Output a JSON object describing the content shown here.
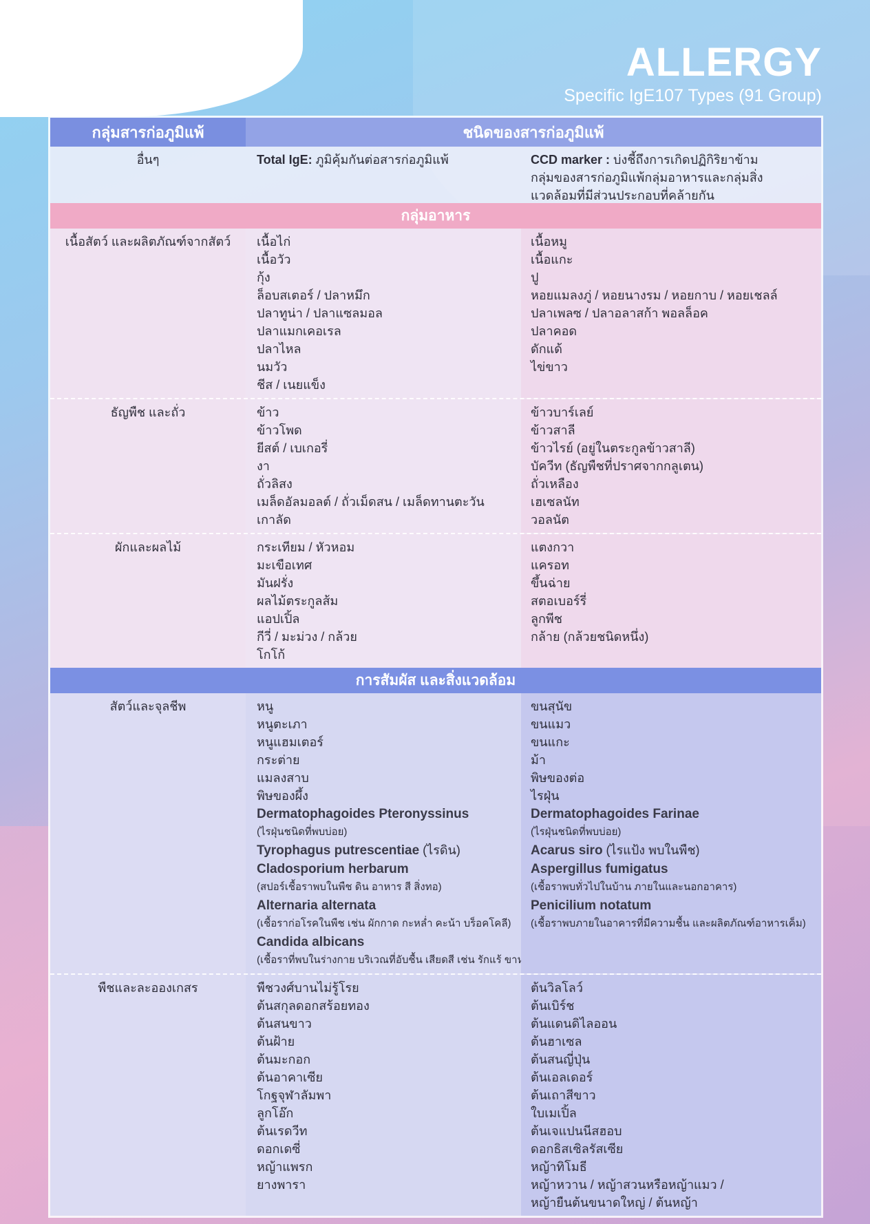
{
  "header": {
    "title": "ALLERGY",
    "subtitle": "Specific IgE107 Types (91 Group)"
  },
  "table": {
    "col_group": "กลุ่มสารก่อภูมิแพ้",
    "col_types": "ชนิดของสารก่อภูมิแพ้",
    "other": {
      "group": "อื่นๆ",
      "total_ige_label": "Total IgE:",
      "total_ige_text": " ภูมิคุ้มกันต่อสารก่อภูมิแพ้",
      "ccd_label": "CCD marker :",
      "ccd_text": " บ่งชี้ถึงการเกิดปฏิกิริยาข้ามกลุ่มของสารก่อภูมิแพ้กลุ่มอาหารและกลุ่มสิ่งแวดล้อมที่มีส่วนประกอบที่คล้ายกัน"
    },
    "food": {
      "title": "กลุ่มอาหาร",
      "rows": [
        {
          "group": "เนื้อสัตว์ และผลิตภัณฑ์จากสัตว์",
          "left": [
            "เนื้อไก่",
            "เนื้อวัว",
            "กุ้ง",
            "ล็อบสเตอร์ / ปลาหมึก",
            "ปลาทูน่า / ปลาแซลมอล",
            "ปลาแมกเคอเรล",
            "ปลาไหล",
            "นมวัว",
            "ชีส / เนยแข็ง"
          ],
          "right": [
            "เนื้อหมู",
            "เนื้อแกะ",
            "ปู",
            "หอยแมลงภู่ / หอยนางรม / หอยกาบ / หอยเชลล์",
            "ปลาเพลซ / ปลาอลาสก้า พอลล็อค",
            "ปลาคอด",
            "ดักแด้",
            "ไข่ขาว"
          ]
        },
        {
          "group": "ธัญพืช และถั่ว",
          "left": [
            "ข้าว",
            "ข้าวโพด",
            "ยีสต์ / เบเกอรี่",
            "งา",
            "ถั่วลิสง",
            "เมล็ดอัลมอลต์ / ถั่วเม็ดสน / เมล็ดทานตะวัน",
            "เกาลัด"
          ],
          "right": [
            "ข้าวบาร์เลย์",
            "ข้าวสาลี",
            "ข้าวไรย์ (อยู่ในตระกูลข้าวสาลี)",
            "บัควีท (ธัญพืชที่ปราศจากกลูเตน)",
            "ถั่วเหลือง",
            "เฮเซลนัท",
            "วอลนัต"
          ]
        },
        {
          "group": "ผักและผลไม้",
          "left": [
            "กระเทียม / หัวหอม",
            "มะเขือเทศ",
            "มันฝรั่ง",
            "ผลไม้ตระกูลส้ม",
            "แอปเปิ้ล",
            "กีวี่ / มะม่วง / กล้วย",
            "โกโก้"
          ],
          "right": [
            "แตงกวา",
            "แครอท",
            "ขึ้นฉ่าย",
            "สตอเบอร์รี่",
            "ลูกพีช",
            "กล้าย (กล้วยชนิดหนึ่ง)"
          ]
        }
      ]
    },
    "env": {
      "title": "การสัมผัส และสิ่งแวดล้อม",
      "rows": [
        {
          "group": "สัตว์และจุลชีพ",
          "left": [
            {
              "text": "หนู"
            },
            {
              "text": "หนูตะเภา"
            },
            {
              "text": "หนูแฮมเตอร์"
            },
            {
              "text": "กระต่าย"
            },
            {
              "text": "แมลงสาบ"
            },
            {
              "text": "พิษของผึ้ง"
            },
            {
              "sci": "Dermatophagoides Pteronyssinus",
              "note": "(ไรฝุ่นชนิดที่พบบ่อย)"
            },
            {
              "sci": "Tyrophagus putrescentiae",
              "inline": " (ไรดิน)"
            },
            {
              "sci": "Cladosporium herbarum",
              "note": "(สปอร์เชื้อราพบในพืช ดิน อาหาร สี สิ่งทอ)"
            },
            {
              "sci": "Alternaria alternata",
              "note": "(เชื้อราก่อโรคในพืช เช่น ผักกาด กะหล่ำ คะน้า บร็อคโคลี)"
            },
            {
              "sci": "Candida albicans",
              "note": "(เชื้อราที่พบในร่างกาย บริเวณที่อับชื้น เสียดสี เช่น รักแร้ ขาหนีบ ร่องผิวหนัง)"
            }
          ],
          "right": [
            {
              "text": "ขนสุนัข"
            },
            {
              "text": "ขนแมว"
            },
            {
              "text": "ขนแกะ"
            },
            {
              "text": "ม้า"
            },
            {
              "text": "พิษของต่อ"
            },
            {
              "text": "ไรฝุ่น"
            },
            {
              "sci": "Dermatophagoides Farinae",
              "note": "(ไรฝุ่นชนิดที่พบบ่อย)"
            },
            {
              "sci": "Acarus siro",
              "inline": " (ไรแป้ง พบในพืช)"
            },
            {
              "sci": "Aspergillus fumigatus",
              "note": "(เชื้อราพบทั่วไปในบ้าน ภายในและนอกอาคาร)"
            },
            {
              "sci": "Penicilium notatum",
              "note": "(เชื้อราพบภายในอาคารที่มีความชื้น และผลิตภัณฑ์อาหารเค็ม)"
            }
          ]
        },
        {
          "group": "พืชและละอองเกสร",
          "left": [
            {
              "text": "พืชวงศ์บานไม่รู้โรย"
            },
            {
              "text": "ต้นสกุลดอกสร้อยทอง"
            },
            {
              "text": "ต้นสนขาว"
            },
            {
              "text": "ต้นฝ้าย"
            },
            {
              "text": "ต้นมะกอก"
            },
            {
              "text": "ต้นอาคาเซีย"
            },
            {
              "text": "โกฐจุฬาลัมพา"
            },
            {
              "text": "ลูกโอ๊ก"
            },
            {
              "text": "ต้นเรดวีท"
            },
            {
              "text": "ดอกเดซี่"
            },
            {
              "text": "หญ้าแพรก"
            },
            {
              "text": "ยางพารา"
            }
          ],
          "right": [
            {
              "text": "ต้นวิลโลว์"
            },
            {
              "text": "ต้นเบิร์ช"
            },
            {
              "text": "ต้นแดนดิไลออน"
            },
            {
              "text": "ต้นฮาเซล"
            },
            {
              "text": "ต้นสนญี่ปุ่น"
            },
            {
              "text": "ต้นเอลเดอร์"
            },
            {
              "text": "ต้นเถาสีขาว"
            },
            {
              "text": "ใบเมเปิ้ล"
            },
            {
              "text": "ต้นเจแปนนีสฮอบ"
            },
            {
              "text": "ดอกธิสเซิลรัสเซีย"
            },
            {
              "text": "หญ้าทิโมธี"
            },
            {
              "text": "หญ้าหวาน / หญ้าสวนหรือหญ้าแมว /"
            },
            {
              "text": "หญ้ายืนต้นขนาดใหญ่ / ต้นหญ้า"
            }
          ]
        }
      ]
    }
  },
  "colors": {
    "header_blue": "#7a8fe0",
    "food_pink": "#f0aac6",
    "env_blue": "#7b90e3"
  }
}
